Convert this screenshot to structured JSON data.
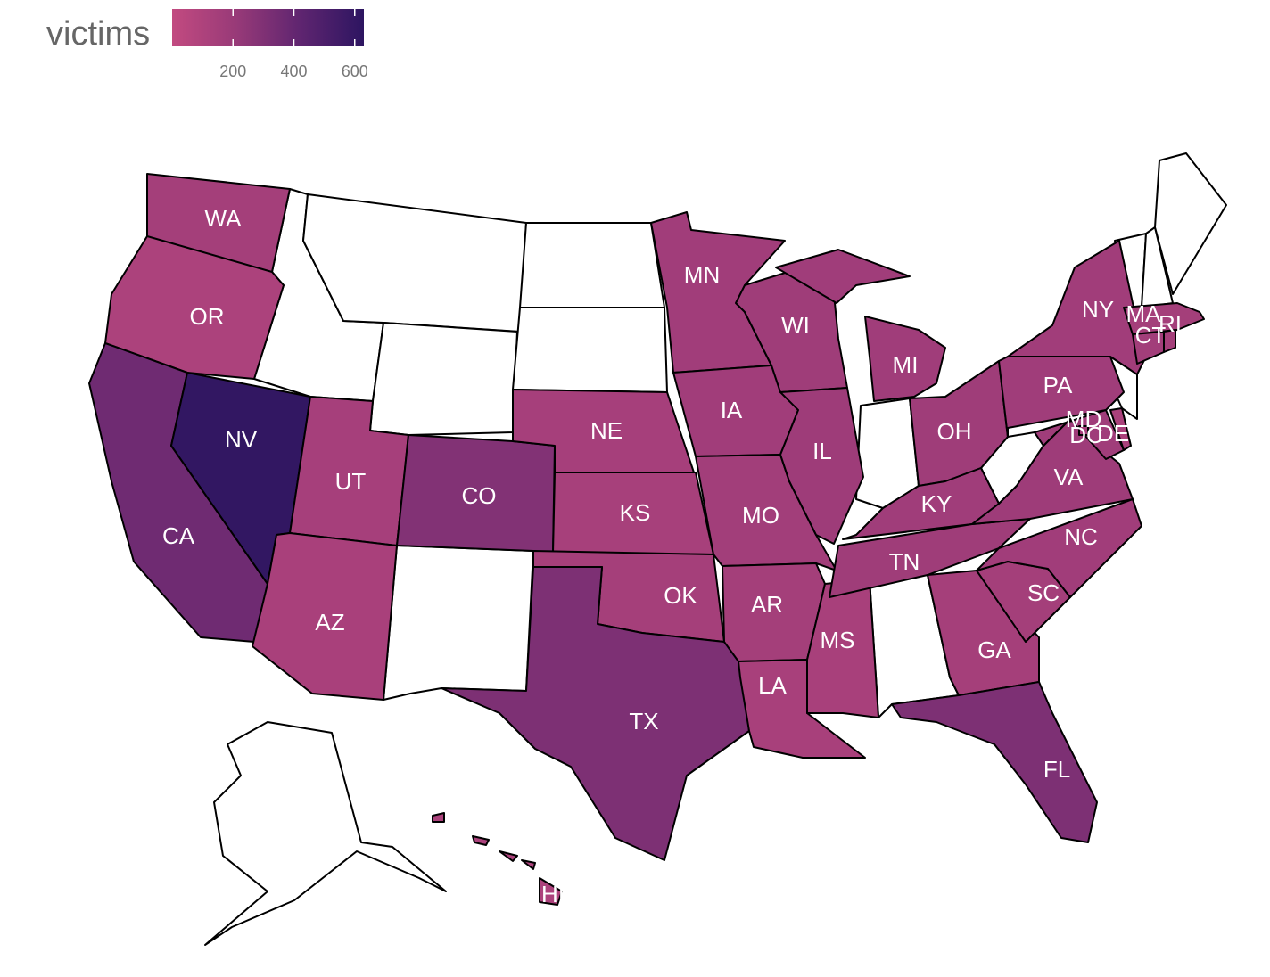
{
  "chart_data": {
    "type": "choropleth",
    "legend_title": "victims",
    "colorlim": [
      0,
      630
    ],
    "colorticks": [
      200,
      400,
      600
    ],
    "colors": [
      "#c24a80",
      "#983a78",
      "#5f2570",
      "#2d1561"
    ],
    "categories": [
      "WA",
      "OR",
      "CA",
      "NV",
      "UT",
      "AZ",
      "CO",
      "NE",
      "KS",
      "OK",
      "TX",
      "MN",
      "IA",
      "MO",
      "AR",
      "LA",
      "WI",
      "IL",
      "MS",
      "MI",
      "OH",
      "KY",
      "TN",
      "GA",
      "FL",
      "SC",
      "NC",
      "VA",
      "PA",
      "NY",
      "MD",
      "DC",
      "DE",
      "MA",
      "CT",
      "RI",
      "HI"
    ],
    "values": [
      150,
      110,
      360,
      610,
      140,
      125,
      290,
      140,
      135,
      145,
      310,
      165,
      165,
      160,
      150,
      130,
      175,
      180,
      130,
      170,
      175,
      170,
      175,
      145,
      310,
      150,
      165,
      180,
      170,
      165,
      170,
      140,
      120,
      150,
      160,
      150,
      110
    ]
  }
}
